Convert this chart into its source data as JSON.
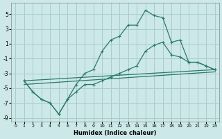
{
  "xlabel": "Humidex (Indice chaleur)",
  "background_color": "#cce8e8",
  "grid_color": "#aacccc",
  "line_color": "#2a7a6a",
  "xlim": [
    -0.5,
    23.5
  ],
  "ylim": [
    -9.5,
    6.5
  ],
  "xticks": [
    0,
    1,
    2,
    3,
    4,
    5,
    6,
    7,
    8,
    9,
    10,
    11,
    12,
    13,
    14,
    15,
    16,
    17,
    18,
    19,
    20,
    21,
    22,
    23
  ],
  "yticks": [
    -9,
    -7,
    -5,
    -3,
    -1,
    1,
    3,
    5
  ],
  "lines": [
    {
      "x": [
        1,
        2,
        3,
        4,
        5,
        6,
        7,
        8,
        9,
        10,
        11,
        12,
        13,
        14,
        15,
        16,
        17,
        18,
        19,
        20,
        21,
        22,
        23
      ],
      "y": [
        -4.0,
        -5.5,
        -6.5,
        -7.0,
        -8.5,
        -6.5,
        -4.5,
        -3.0,
        -2.5,
        0.0,
        1.5,
        2.0,
        3.5,
        3.5,
        5.5,
        4.8,
        4.5,
        1.2,
        1.5,
        -1.5,
        -1.5,
        -2.0,
        -2.5
      ],
      "marker": true
    },
    {
      "x": [
        1,
        2,
        3,
        4,
        5,
        6,
        7,
        8,
        9,
        10,
        11,
        12,
        13,
        14,
        15,
        16,
        17,
        18,
        19,
        20,
        21,
        22,
        23
      ],
      "y": [
        -4.0,
        -5.5,
        -6.5,
        -7.0,
        -8.5,
        -6.5,
        -5.5,
        -4.5,
        -4.5,
        -4.0,
        -3.5,
        -3.0,
        -2.5,
        -2.0,
        0.0,
        0.8,
        1.2,
        -0.5,
        -0.8,
        -1.5,
        -1.5,
        -2.0,
        -2.5
      ],
      "marker": true
    },
    {
      "x": [
        1,
        23
      ],
      "y": [
        -4.0,
        -2.5
      ],
      "marker": false
    },
    {
      "x": [
        1,
        23
      ],
      "y": [
        -4.5,
        -2.8
      ],
      "marker": false
    }
  ]
}
